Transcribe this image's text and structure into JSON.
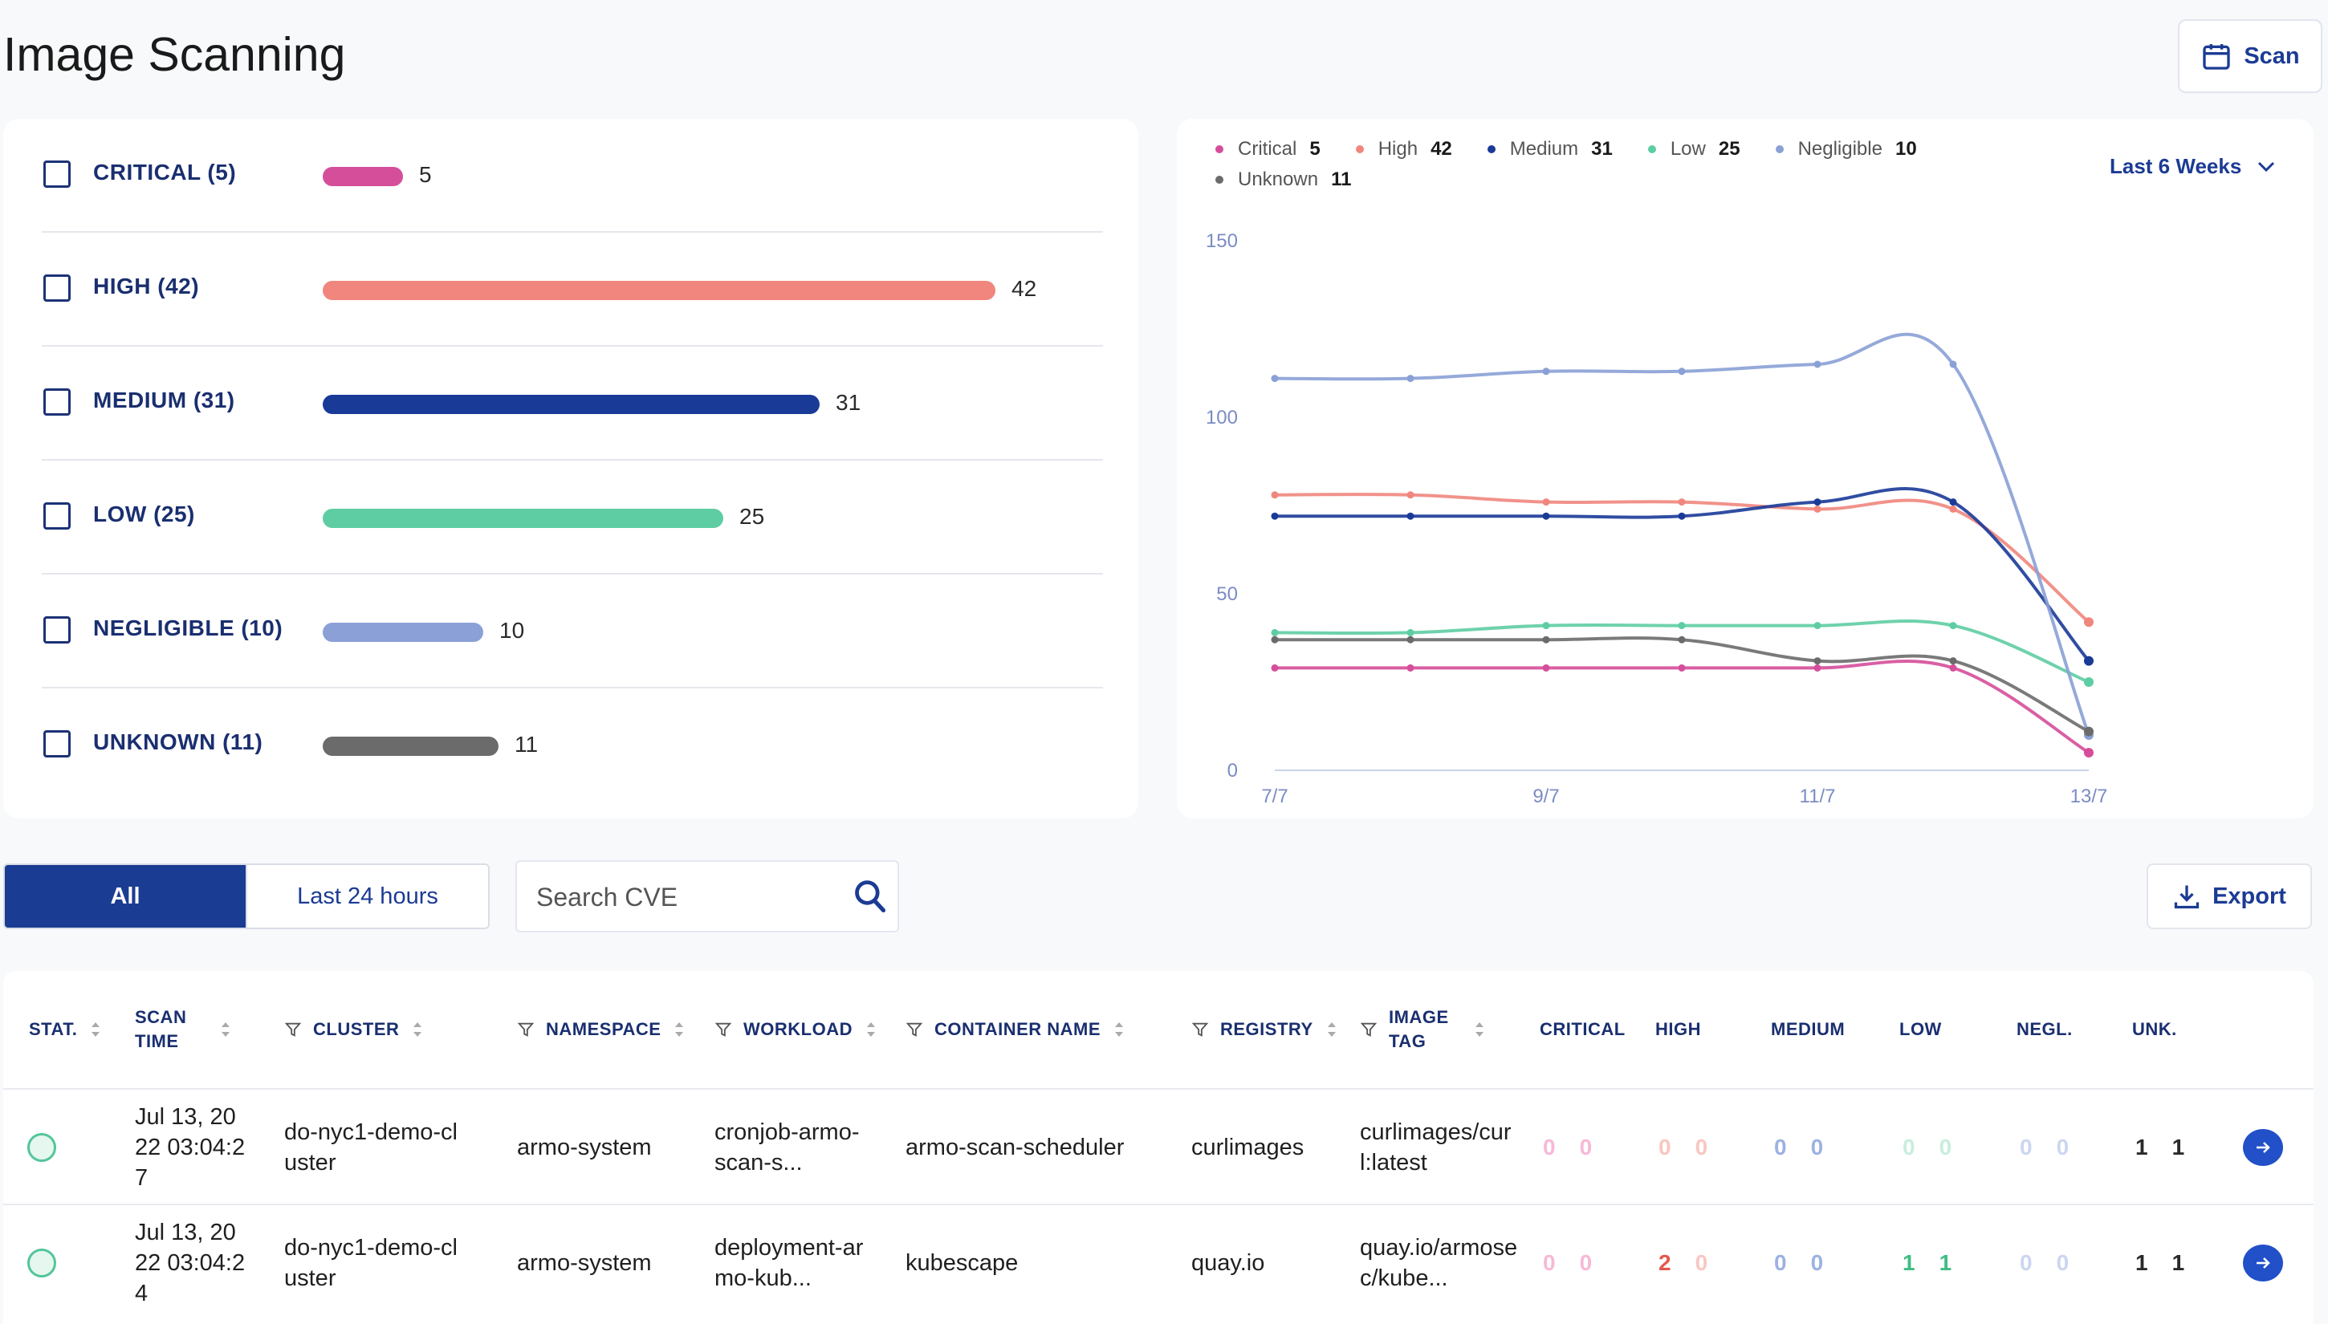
{
  "page": {
    "title": "Image Scanning",
    "scan_button": "Scan",
    "calendar_icon": "calendar-icon"
  },
  "severity": [
    {
      "label": "CRITICAL (5)",
      "value": 5,
      "display": "5",
      "color": "#d54e9a"
    },
    {
      "label": "HIGH (42)",
      "value": 42,
      "display": "42",
      "color": "#f0867d"
    },
    {
      "label": "MEDIUM (31)",
      "value": 31,
      "display": "31",
      "color": "#1a3a98"
    },
    {
      "label": "LOW (25)",
      "value": 25,
      "display": "25",
      "color": "#5ecda3"
    },
    {
      "label": "NEGLIGIBLE (10)",
      "value": 10,
      "display": "10",
      "color": "#8aa0d6"
    },
    {
      "label": "UNKNOWN (11)",
      "value": 11,
      "display": "11",
      "color": "#6b6b6b"
    }
  ],
  "chart_data": {
    "type": "line",
    "range_label": "Last 6 Weeks",
    "x": [
      "7/7",
      "8/7",
      "9/7",
      "10/7",
      "11/7",
      "12/7",
      "13/7"
    ],
    "x_tick_labels": [
      "7/7",
      "9/7",
      "11/7",
      "13/7"
    ],
    "ylim": [
      0,
      150
    ],
    "y_ticks": [
      "0",
      "50",
      "100",
      "150"
    ],
    "series": [
      {
        "name": "Critical",
        "count": "5",
        "color": "#d54e9a",
        "values": [
          29,
          29,
          29,
          29,
          29,
          29,
          5
        ]
      },
      {
        "name": "High",
        "count": "42",
        "color": "#f0867d",
        "values": [
          78,
          78,
          76,
          76,
          74,
          74,
          42
        ]
      },
      {
        "name": "Medium",
        "count": "31",
        "color": "#1a3a98",
        "values": [
          72,
          72,
          72,
          72,
          76,
          76,
          31
        ]
      },
      {
        "name": "Low",
        "count": "25",
        "color": "#5ecda3",
        "values": [
          39,
          39,
          41,
          41,
          41,
          41,
          25
        ]
      },
      {
        "name": "Negligible",
        "count": "10",
        "color": "#8aa0d6",
        "values": [
          111,
          111,
          113,
          113,
          115,
          115,
          10
        ]
      },
      {
        "name": "Unknown",
        "count": "11",
        "color": "#6b6b6b",
        "values": [
          37,
          37,
          37,
          37,
          31,
          31,
          11
        ]
      }
    ]
  },
  "filters": {
    "all": "All",
    "last24": "Last 24 hours",
    "search_placeholder": "Search CVE",
    "export": "Export"
  },
  "table": {
    "headers": [
      "STAT.",
      "SCAN TIME",
      "CLUSTER",
      "NAMESPACE",
      "WORKLOAD",
      "CONTAINER NAME",
      "REGISTRY",
      "IMAGE TAG",
      "CRITICAL",
      "HIGH",
      "MEDIUM",
      "LOW",
      "NEGL.",
      "UNK."
    ],
    "rows": [
      {
        "scan_time": "Jul 13, 2022 03:04:27",
        "cluster": "do-nyc1-demo-cluster",
        "namespace": "armo-system",
        "workload": "cronjob-armo-scan-s...",
        "container": "armo-scan-scheduler",
        "registry": "curlimages",
        "image_tag": "curlimages/curl:latest",
        "critical": [
          "0",
          "0"
        ],
        "high": [
          "0",
          "0"
        ],
        "medium": [
          "0",
          "0"
        ],
        "low": [
          "0",
          "0"
        ],
        "negl": [
          "0",
          "0"
        ],
        "unk": [
          "1",
          "1"
        ]
      },
      {
        "scan_time": "Jul 13, 2022 03:04:24",
        "cluster": "do-nyc1-demo-cluster",
        "namespace": "armo-system",
        "workload": "deployment-armo-kub...",
        "container": "kubescape",
        "registry": "quay.io",
        "image_tag": "quay.io/armosec/kube...",
        "critical": [
          "0",
          "0"
        ],
        "high": [
          "2",
          "0"
        ],
        "medium": [
          "0",
          "0"
        ],
        "low": [
          "1",
          "1"
        ],
        "negl": [
          "0",
          "0"
        ],
        "unk": [
          "1",
          "1"
        ]
      }
    ]
  }
}
